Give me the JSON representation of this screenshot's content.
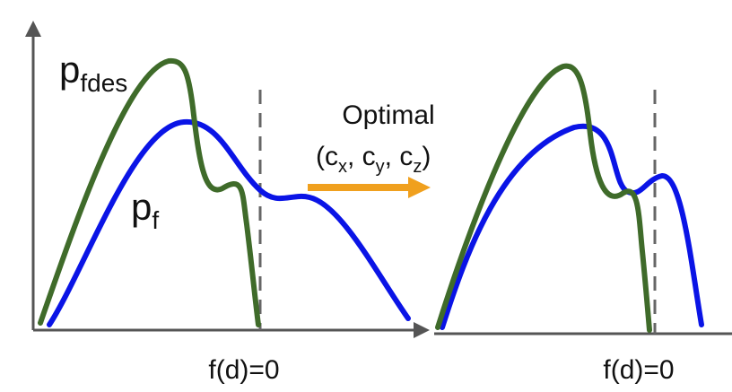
{
  "labels": {
    "pfdes_main": "p",
    "pfdes_sub": "fdes",
    "pf_main": "p",
    "pf_sub": "f",
    "arrow_title": "Optimal",
    "coords": {
      "open": "(c",
      "x_sub": "x",
      "sep1": ", c",
      "y_sub": "y",
      "sep2": ", c",
      "z_sub": "z",
      "close": ")"
    },
    "threshold_left": "f(d)=0",
    "threshold_right": "f(d)=0"
  },
  "colors": {
    "pfdes_curve": "#3f6b2a",
    "pf_curve": "#0a14e6",
    "arrow": "#f0a01e",
    "axis": "#555555",
    "threshold": "#666666"
  }
}
